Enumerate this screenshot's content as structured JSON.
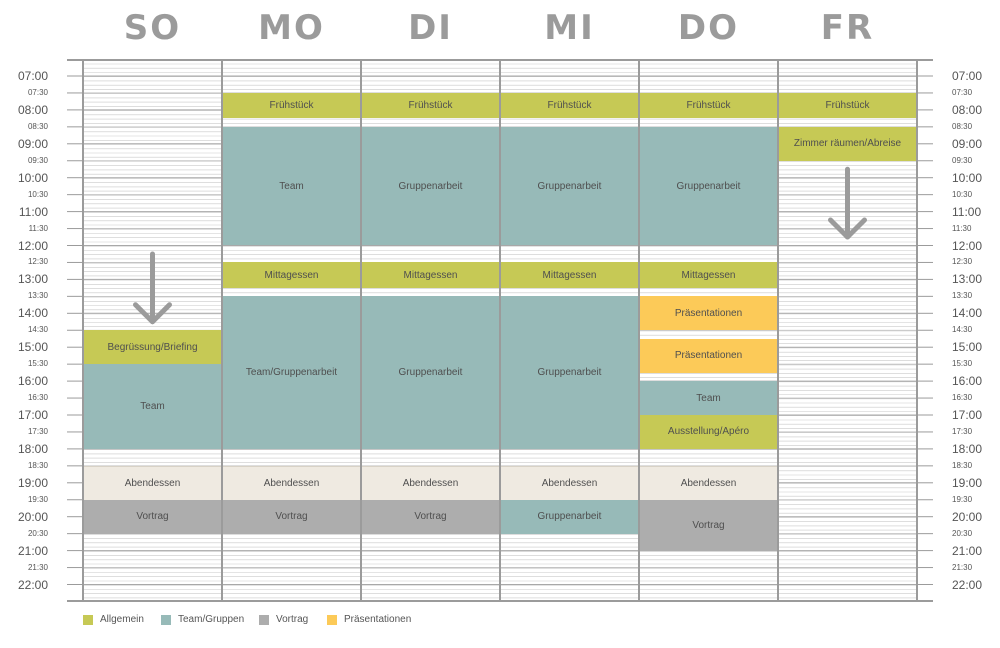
{
  "days": [
    "SO",
    "MO",
    "DI",
    "MI",
    "DO",
    "FR"
  ],
  "times": [
    "07:00",
    "07:30",
    "08:00",
    "08:30",
    "09:00",
    "09:30",
    "10:00",
    "10:30",
    "11:00",
    "11:30",
    "12:00",
    "12:30",
    "13:00",
    "13:30",
    "14:00",
    "14:30",
    "15:00",
    "15:30",
    "16:00",
    "16:30",
    "17:00",
    "17:30",
    "18:00",
    "18:30",
    "19:00",
    "19:30",
    "20:00",
    "20:30",
    "21:00",
    "21:30",
    "22:00"
  ],
  "colors": {
    "allgemein": "#c6c955",
    "team": "#97bab8",
    "vortrag": "#adadad",
    "praesentation": "#fcca58",
    "abend": "#efeae1"
  },
  "events": [
    {
      "day": 0,
      "start": "14:30",
      "end": "15:30",
      "label": "Begrüssung/Briefing",
      "type": "allgemein"
    },
    {
      "day": 0,
      "start": "15:30",
      "end": "18:00",
      "label": "Team",
      "type": "team"
    },
    {
      "day": 0,
      "start": "18:30",
      "end": "19:30",
      "label": "Abendessen",
      "type": "abend"
    },
    {
      "day": 0,
      "start": "19:30",
      "end": "20:30",
      "label": "Vortrag",
      "type": "vortrag"
    },
    {
      "day": 1,
      "start": "07:30",
      "end": "08:15",
      "label": "Frühstück",
      "type": "allgemein"
    },
    {
      "day": 1,
      "start": "08:30",
      "end": "12:00",
      "label": "Team",
      "type": "team"
    },
    {
      "day": 1,
      "start": "12:30",
      "end": "13:15",
      "label": "Mittagessen",
      "type": "allgemein"
    },
    {
      "day": 1,
      "start": "13:30",
      "end": "18:00",
      "label": "Team/Gruppenarbeit",
      "type": "team"
    },
    {
      "day": 1,
      "start": "18:30",
      "end": "19:30",
      "label": "Abendessen",
      "type": "abend"
    },
    {
      "day": 1,
      "start": "19:30",
      "end": "20:30",
      "label": "Vortrag",
      "type": "vortrag"
    },
    {
      "day": 2,
      "start": "07:30",
      "end": "08:15",
      "label": "Frühstück",
      "type": "allgemein"
    },
    {
      "day": 2,
      "start": "08:30",
      "end": "12:00",
      "label": "Gruppenarbeit",
      "type": "team"
    },
    {
      "day": 2,
      "start": "12:30",
      "end": "13:15",
      "label": "Mittagessen",
      "type": "allgemein"
    },
    {
      "day": 2,
      "start": "13:30",
      "end": "18:00",
      "label": "Gruppenarbeit",
      "type": "team"
    },
    {
      "day": 2,
      "start": "18:30",
      "end": "19:30",
      "label": "Abendessen",
      "type": "abend"
    },
    {
      "day": 2,
      "start": "19:30",
      "end": "20:30",
      "label": "Vortrag",
      "type": "vortrag"
    },
    {
      "day": 3,
      "start": "07:30",
      "end": "08:15",
      "label": "Frühstück",
      "type": "allgemein"
    },
    {
      "day": 3,
      "start": "08:30",
      "end": "12:00",
      "label": "Gruppenarbeit",
      "type": "team"
    },
    {
      "day": 3,
      "start": "12:30",
      "end": "13:15",
      "label": "Mittagessen",
      "type": "allgemein"
    },
    {
      "day": 3,
      "start": "13:30",
      "end": "18:00",
      "label": "Gruppenarbeit",
      "type": "team"
    },
    {
      "day": 3,
      "start": "18:30",
      "end": "19:30",
      "label": "Abendessen",
      "type": "abend"
    },
    {
      "day": 3,
      "start": "19:30",
      "end": "20:30",
      "label": "Gruppenarbeit",
      "type": "team"
    },
    {
      "day": 4,
      "start": "07:30",
      "end": "08:15",
      "label": "Frühstück",
      "type": "allgemein"
    },
    {
      "day": 4,
      "start": "08:30",
      "end": "12:00",
      "label": "Gruppenarbeit",
      "type": "team"
    },
    {
      "day": 4,
      "start": "12:30",
      "end": "13:15",
      "label": "Mittagessen",
      "type": "allgemein"
    },
    {
      "day": 4,
      "start": "13:30",
      "end": "14:30",
      "label": "Präsentationen",
      "type": "praesentation"
    },
    {
      "day": 4,
      "start": "14:45",
      "end": "15:45",
      "label": "Präsentationen",
      "type": "praesentation"
    },
    {
      "day": 4,
      "start": "16:00",
      "end": "17:00",
      "label": "Team",
      "type": "team"
    },
    {
      "day": 4,
      "start": "17:00",
      "end": "18:00",
      "label": "Ausstellung/Apéro",
      "type": "allgemein"
    },
    {
      "day": 4,
      "start": "18:30",
      "end": "19:30",
      "label": "Abendessen",
      "type": "abend"
    },
    {
      "day": 4,
      "start": "19:30",
      "end": "21:00",
      "label": "Vortrag",
      "type": "vortrag"
    },
    {
      "day": 5,
      "start": "07:30",
      "end": "08:15",
      "label": "Frühstück",
      "type": "allgemein"
    },
    {
      "day": 5,
      "start": "08:30",
      "end": "09:30",
      "label": "Zimmer räumen/Abreise",
      "type": "allgemein"
    }
  ],
  "arrows": [
    {
      "day": 0,
      "from": "12:15",
      "to": "14:15"
    },
    {
      "day": 5,
      "from": "09:45",
      "to": "11:45"
    }
  ],
  "legend": [
    {
      "label": "Allgemein",
      "type": "allgemein"
    },
    {
      "label": "Team/Gruppen",
      "type": "team"
    },
    {
      "label": "Vortrag",
      "type": "vortrag"
    },
    {
      "label": "Präsentationen",
      "type": "praesentation"
    }
  ]
}
